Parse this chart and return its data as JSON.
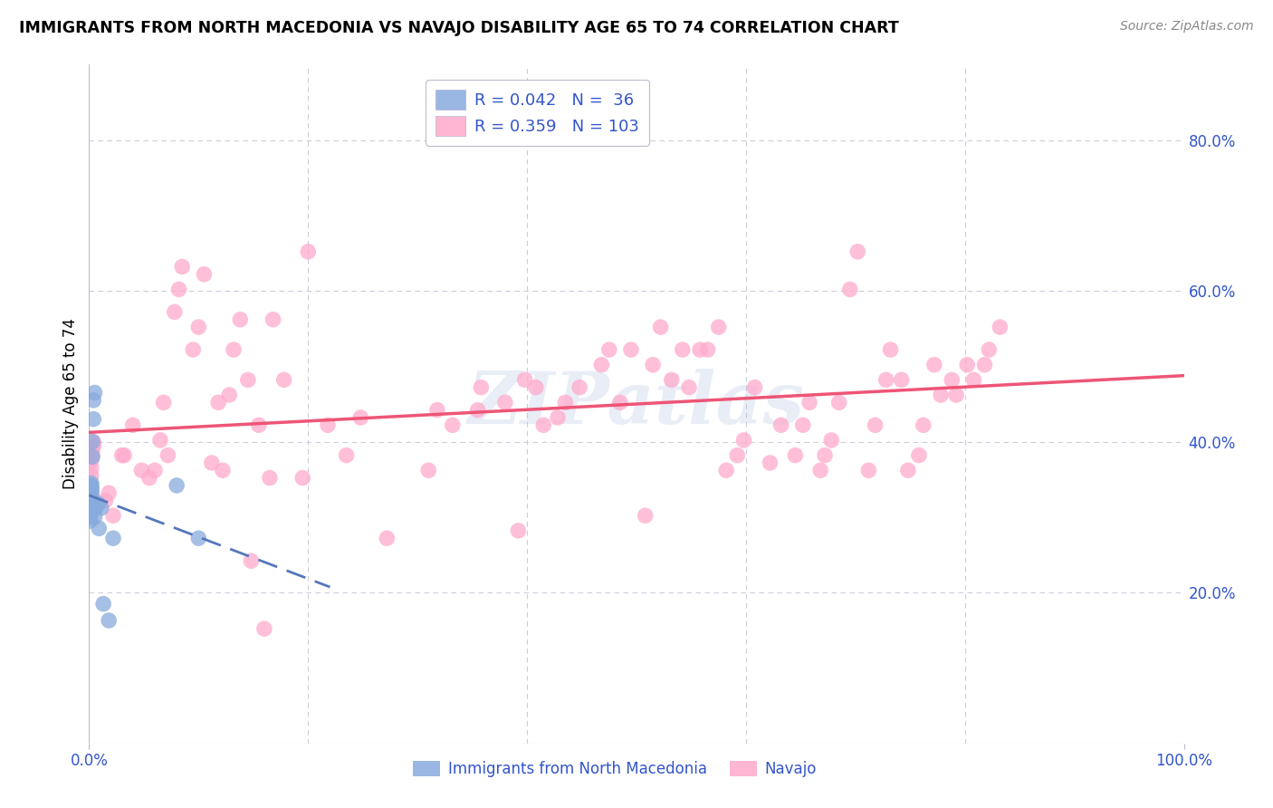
{
  "title": "IMMIGRANTS FROM NORTH MACEDONIA VS NAVAJO DISABILITY AGE 65 TO 74 CORRELATION CHART",
  "source": "Source: ZipAtlas.com",
  "ylabel": "Disability Age 65 to 74",
  "xlim": [
    0.0,
    1.0
  ],
  "ylim": [
    0.0,
    0.9
  ],
  "y_ticks_right": [
    0.2,
    0.4,
    0.6,
    0.8
  ],
  "y_tick_labels_right": [
    "20.0%",
    "40.0%",
    "60.0%",
    "80.0%"
  ],
  "color_blue": "#88AADD",
  "color_pink": "#FFAACC",
  "color_blue_line": "#5577BB",
  "color_pink_line": "#EE5577",
  "color_axis_labels": "#3355CC",
  "color_grid": "#CCCCDD",
  "watermark": "ZIPatlas",
  "blue_x": [
    0.001,
    0.001,
    0.001,
    0.001,
    0.001,
    0.001,
    0.001,
    0.001,
    0.001,
    0.001,
    0.002,
    0.002,
    0.002,
    0.002,
    0.002,
    0.002,
    0.002,
    0.002,
    0.002,
    0.002,
    0.003,
    0.003,
    0.004,
    0.004,
    0.005,
    0.005,
    0.006,
    0.007,
    0.008,
    0.009,
    0.011,
    0.013,
    0.018,
    0.022,
    0.08,
    0.1
  ],
  "blue_y": [
    0.295,
    0.3,
    0.305,
    0.308,
    0.31,
    0.312,
    0.315,
    0.318,
    0.32,
    0.322,
    0.325,
    0.328,
    0.33,
    0.332,
    0.334,
    0.336,
    0.338,
    0.34,
    0.342,
    0.345,
    0.38,
    0.4,
    0.43,
    0.455,
    0.465,
    0.3,
    0.312,
    0.315,
    0.318,
    0.285,
    0.312,
    0.185,
    0.163,
    0.272,
    0.342,
    0.272
  ],
  "pink_x": [
    0.002,
    0.002,
    0.002,
    0.003,
    0.003,
    0.003,
    0.004,
    0.004,
    0.015,
    0.018,
    0.022,
    0.03,
    0.032,
    0.04,
    0.048,
    0.055,
    0.06,
    0.065,
    0.068,
    0.072,
    0.078,
    0.082,
    0.085,
    0.095,
    0.1,
    0.105,
    0.112,
    0.118,
    0.122,
    0.128,
    0.132,
    0.138,
    0.145,
    0.148,
    0.155,
    0.16,
    0.165,
    0.168,
    0.178,
    0.195,
    0.2,
    0.218,
    0.235,
    0.248,
    0.272,
    0.31,
    0.318,
    0.332,
    0.355,
    0.358,
    0.38,
    0.392,
    0.398,
    0.408,
    0.415,
    0.428,
    0.435,
    0.448,
    0.468,
    0.475,
    0.485,
    0.495,
    0.508,
    0.515,
    0.522,
    0.532,
    0.542,
    0.548,
    0.558,
    0.565,
    0.575,
    0.582,
    0.592,
    0.598,
    0.608,
    0.622,
    0.632,
    0.645,
    0.652,
    0.658,
    0.668,
    0.672,
    0.678,
    0.685,
    0.695,
    0.702,
    0.712,
    0.718,
    0.728,
    0.732,
    0.742,
    0.748,
    0.758,
    0.762,
    0.772,
    0.778,
    0.788,
    0.792,
    0.802,
    0.808,
    0.818,
    0.822,
    0.832
  ],
  "pink_y": [
    0.355,
    0.365,
    0.375,
    0.382,
    0.388,
    0.392,
    0.395,
    0.4,
    0.322,
    0.332,
    0.302,
    0.382,
    0.382,
    0.422,
    0.362,
    0.352,
    0.362,
    0.402,
    0.452,
    0.382,
    0.572,
    0.602,
    0.632,
    0.522,
    0.552,
    0.622,
    0.372,
    0.452,
    0.362,
    0.462,
    0.522,
    0.562,
    0.482,
    0.242,
    0.422,
    0.152,
    0.352,
    0.562,
    0.482,
    0.352,
    0.652,
    0.422,
    0.382,
    0.432,
    0.272,
    0.362,
    0.442,
    0.422,
    0.442,
    0.472,
    0.452,
    0.282,
    0.482,
    0.472,
    0.422,
    0.432,
    0.452,
    0.472,
    0.502,
    0.522,
    0.452,
    0.522,
    0.302,
    0.502,
    0.552,
    0.482,
    0.522,
    0.472,
    0.522,
    0.522,
    0.552,
    0.362,
    0.382,
    0.402,
    0.472,
    0.372,
    0.422,
    0.382,
    0.422,
    0.452,
    0.362,
    0.382,
    0.402,
    0.452,
    0.602,
    0.652,
    0.362,
    0.422,
    0.482,
    0.522,
    0.482,
    0.362,
    0.382,
    0.422,
    0.502,
    0.462,
    0.482,
    0.462,
    0.502,
    0.482,
    0.502,
    0.522,
    0.552
  ]
}
